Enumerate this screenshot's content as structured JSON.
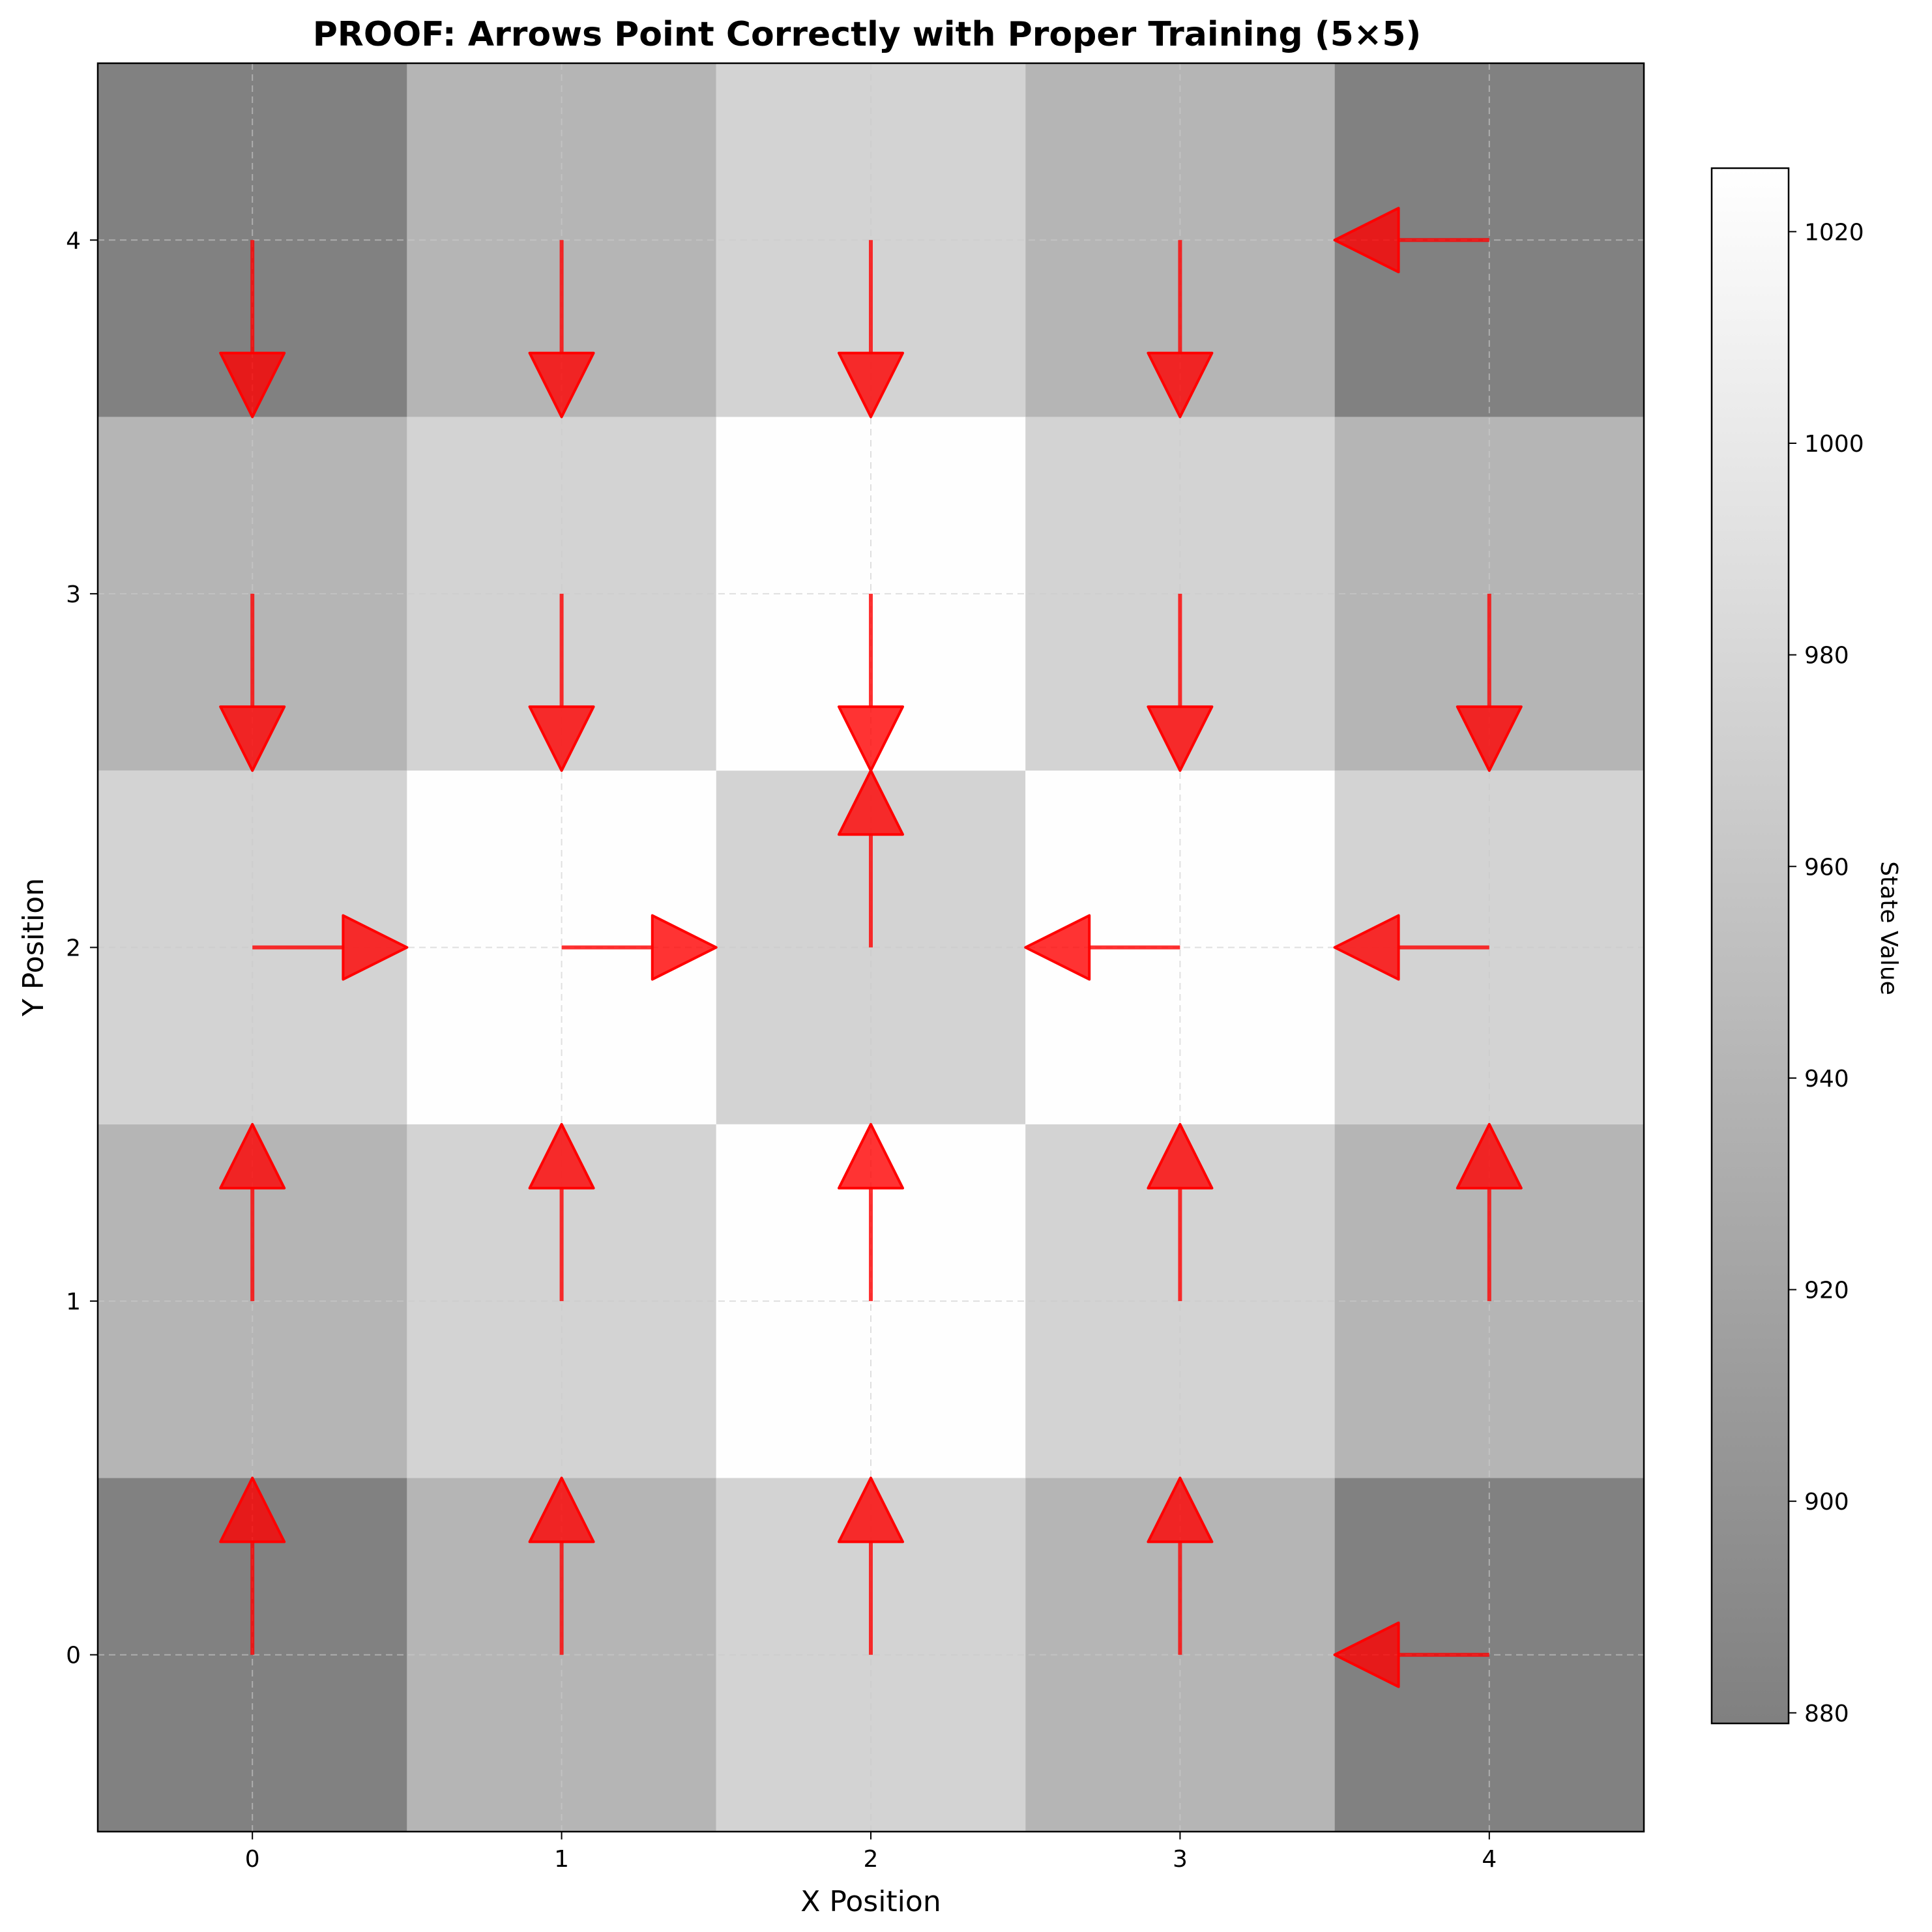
{
  "chart_data": {
    "type": "heatmap",
    "title": "PROOF: Arrows Point Correctly with Proper Training (5×5)",
    "xlabel": "X Position",
    "ylabel": "Y Position",
    "x_ticks": [
      "0",
      "1",
      "2",
      "3",
      "4"
    ],
    "y_ticks": [
      "0",
      "1",
      "2",
      "3",
      "4"
    ],
    "xlim": [
      -0.5,
      4.5
    ],
    "ylim": [
      -0.5,
      4.5
    ],
    "grid": true,
    "colormap": "gray",
    "state_values_rows_y0_to_y4": [
      [
        880,
        940,
        975,
        940,
        880
      ],
      [
        940,
        975,
        1025,
        975,
        940
      ],
      [
        975,
        1025,
        975,
        1025,
        975
      ],
      [
        940,
        975,
        1025,
        975,
        940
      ],
      [
        880,
        940,
        975,
        940,
        880
      ]
    ],
    "colorbar": {
      "label": "State Value",
      "range": [
        879,
        1026
      ],
      "ticks": [
        "880",
        "900",
        "920",
        "940",
        "960",
        "980",
        "1000",
        "1020"
      ],
      "color_low": "#808080",
      "color_high": "#ffffff"
    },
    "policy_arrows": {
      "color": "#ff0000",
      "length": 0.5,
      "directions_rows_y0_to_y4": [
        [
          "up",
          "up",
          "up",
          "up",
          "left"
        ],
        [
          "up",
          "up",
          "up",
          "up",
          "up"
        ],
        [
          "right",
          "right",
          "up",
          "left",
          "left"
        ],
        [
          "down",
          "down",
          "down",
          "down",
          "down"
        ],
        [
          "down",
          "down",
          "down",
          "down",
          "left"
        ]
      ]
    }
  }
}
